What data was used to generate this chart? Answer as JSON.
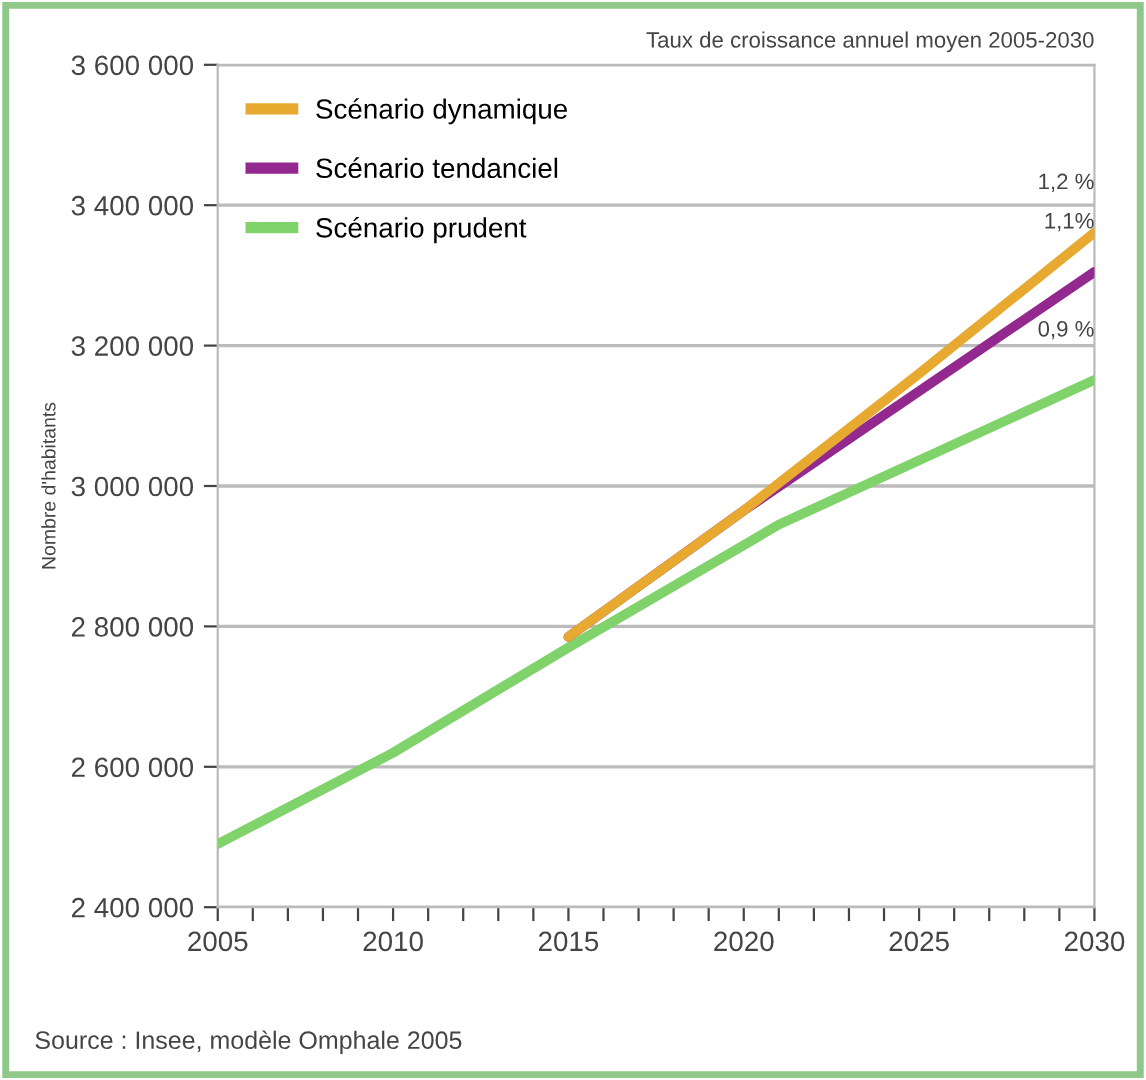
{
  "chart_data": {
    "type": "line",
    "subtitle": "Taux de croissance annuel moyen 2005-2030",
    "ylabel": "Nombre d'habitants",
    "xlim": [
      2005,
      2030
    ],
    "xticks": [
      2005,
      {
        "value": 2006,
        "label": null
      },
      {
        "value": 2007,
        "label": null
      },
      {
        "value": 2008,
        "label": null
      },
      {
        "value": 2009,
        "label": null
      },
      2010,
      {
        "value": 2011,
        "label": null
      },
      {
        "value": 2012,
        "label": null
      },
      {
        "value": 2013,
        "label": null
      },
      {
        "value": 2014,
        "label": null
      },
      2015,
      {
        "value": 2016,
        "label": null
      },
      {
        "value": 2017,
        "label": null
      },
      {
        "value": 2018,
        "label": null
      },
      {
        "value": 2019,
        "label": null
      },
      2020,
      {
        "value": 2021,
        "label": null
      },
      {
        "value": 2022,
        "label": null
      },
      {
        "value": 2023,
        "label": null
      },
      {
        "value": 2024,
        "label": null
      },
      2025,
      {
        "value": 2026,
        "label": null
      },
      {
        "value": 2027,
        "label": null
      },
      {
        "value": 2028,
        "label": null
      },
      {
        "value": 2029,
        "label": null
      },
      2030
    ],
    "ylim": [
      2400000,
      3600000
    ],
    "yticks": [
      {
        "value": 2400000,
        "label": "2 400 000"
      },
      {
        "value": 2600000,
        "label": "2 600 000"
      },
      {
        "value": 2800000,
        "label": "2 800 000"
      },
      {
        "value": 3000000,
        "label": "3 000 000"
      },
      {
        "value": 3200000,
        "label": "3 200 000"
      },
      {
        "value": 3400000,
        "label": "3 400 000"
      },
      {
        "value": 3600000,
        "label": "3 600 000"
      }
    ],
    "grid": "y",
    "legend": "top left",
    "marker": "none",
    "line_style": "solid",
    "series": [
      {
        "name": "Scénario dynamique",
        "color": "#e8a930",
        "x": [
          2015,
          2020,
          2025,
          2030
        ],
        "values": [
          2785000,
          2965000,
          3160000,
          3361000
        ]
      },
      {
        "name": "Scénario tendanciel",
        "color": "#93288e",
        "x": [
          2015,
          2020,
          2030
        ],
        "values": [
          2785000,
          2965000,
          3305000
        ]
      },
      {
        "name": "Scénario prudent",
        "color": "#7fd36a",
        "x": [
          2005,
          2010,
          2015,
          2021,
          2030
        ],
        "values": [
          2490000,
          2620000,
          2770000,
          2945000,
          3151000
        ]
      }
    ],
    "annotations": [
      "1,2 %",
      "1,1%",
      "0,9 %",
      "Source : Insee, modèle Omphale 2005"
    ]
  }
}
